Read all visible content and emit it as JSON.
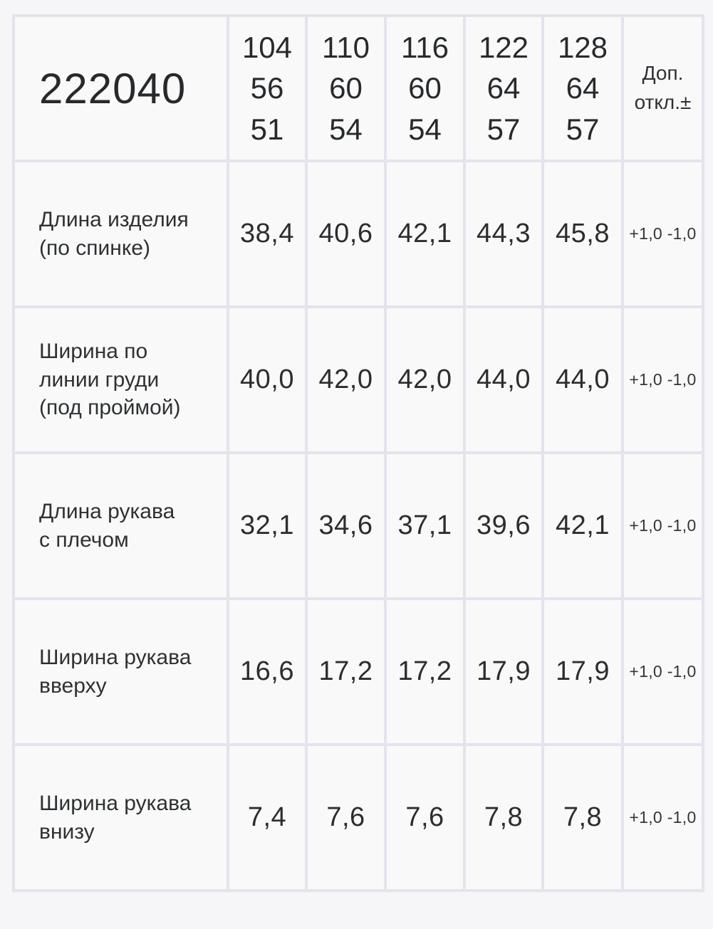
{
  "colors": {
    "page_background": "#f6f6f8",
    "cell_background": "#f9f9fa",
    "border": "#e3e4ec",
    "text": "#2b2d2f"
  },
  "table": {
    "article": "222040",
    "size_headers": [
      "104\n56\n51",
      "110\n60\n54",
      "116\n60\n54",
      "122\n64\n57",
      "128\n64\n57"
    ],
    "tolerance_header": "Доп.\nоткл.±",
    "rows": [
      {
        "label": "Длина изделия\n(по спинке)",
        "values": [
          "38,4",
          "40,6",
          "42,1",
          "44,3",
          "45,8"
        ],
        "tolerance": "+1,0 -1,0"
      },
      {
        "label": "Ширина по\nлинии груди\n(под проймой)",
        "values": [
          "40,0",
          "42,0",
          "42,0",
          "44,0",
          "44,0"
        ],
        "tolerance": "+1,0 -1,0"
      },
      {
        "label": "Длина рукава\nс плечом",
        "values": [
          "32,1",
          "34,6",
          "37,1",
          "39,6",
          "42,1"
        ],
        "tolerance": "+1,0 -1,0"
      },
      {
        "label": "Ширина рукава\nвверху",
        "values": [
          "16,6",
          "17,2",
          "17,2",
          "17,9",
          "17,9"
        ],
        "tolerance": "+1,0 -1,0"
      },
      {
        "label": "Ширина рукава\nвнизу",
        "values": [
          "7,4",
          "7,6",
          "7,6",
          "7,8",
          "7,8"
        ],
        "tolerance": "+1,0 -1,0"
      }
    ]
  }
}
